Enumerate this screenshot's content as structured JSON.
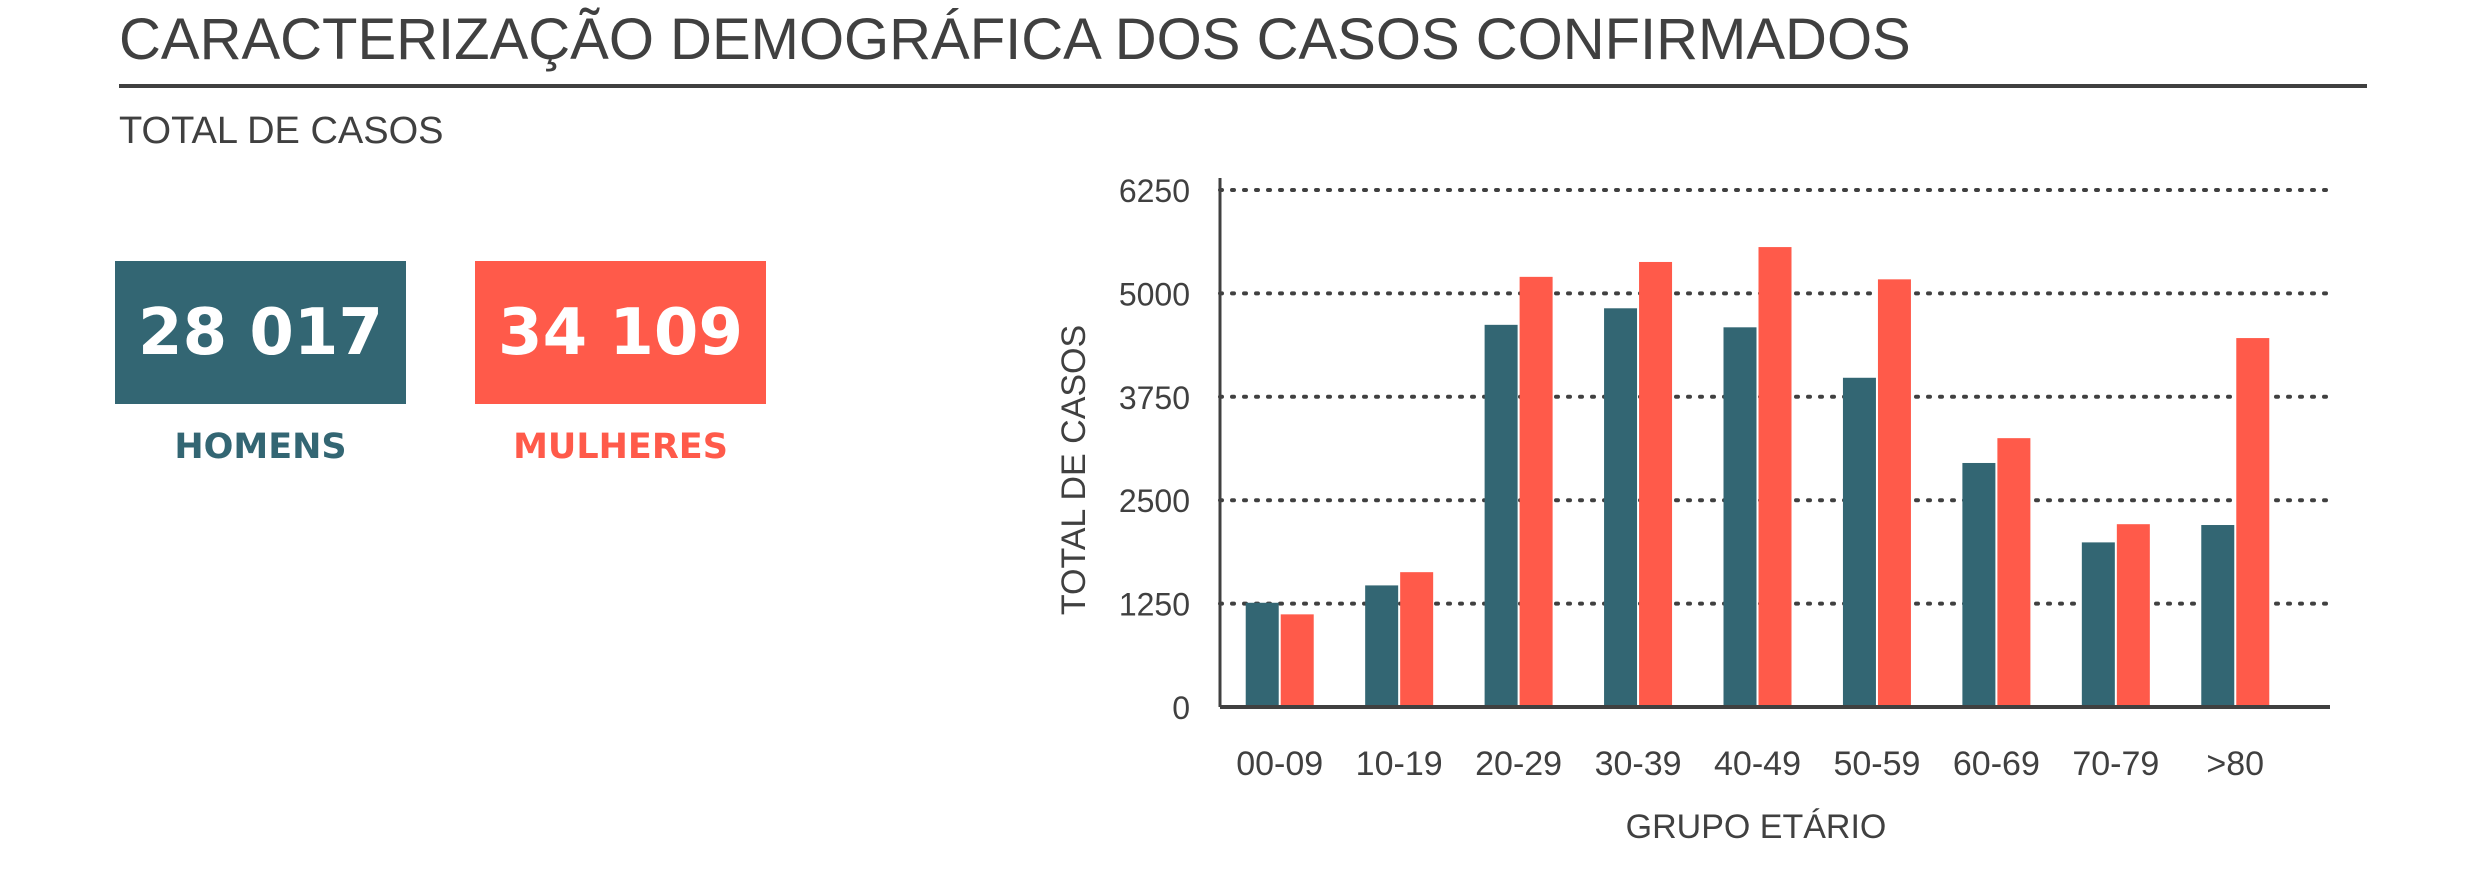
{
  "header": {
    "title": "CARACTERIZAÇÃO DEMOGRÁFICA DOS CASOS CONFIRMADOS",
    "subtitle": "TOTAL DE CASOS"
  },
  "kpis": {
    "men": {
      "value": "28 017",
      "label": "HOMENS",
      "color": "#336673"
    },
    "women": {
      "value": "34 109",
      "label": "MULHERES",
      "color": "#FF5A4A"
    }
  },
  "chart_data": {
    "type": "bar",
    "title": "",
    "xlabel": "GRUPO ETÁRIO",
    "ylabel": "TOTAL DE CASOS",
    "ylim": [
      0,
      6250
    ],
    "yticks": [
      0,
      1250,
      2500,
      3750,
      5000,
      6250
    ],
    "grid": "horizontal dotted",
    "legend": "none",
    "categories": [
      "00-09",
      "10-19",
      "20-29",
      "30-39",
      "40-49",
      "50-59",
      "60-69",
      "70-79",
      ">80"
    ],
    "series": [
      {
        "color": "#336673",
        "values": [
          1260,
          1470,
          4620,
          4820,
          4590,
          3980,
          2950,
          1990,
          2200
        ]
      },
      {
        "color": "#FF5A4A",
        "values": [
          1120,
          1630,
          5200,
          5380,
          5560,
          5170,
          3250,
          2210,
          4460
        ]
      }
    ]
  }
}
